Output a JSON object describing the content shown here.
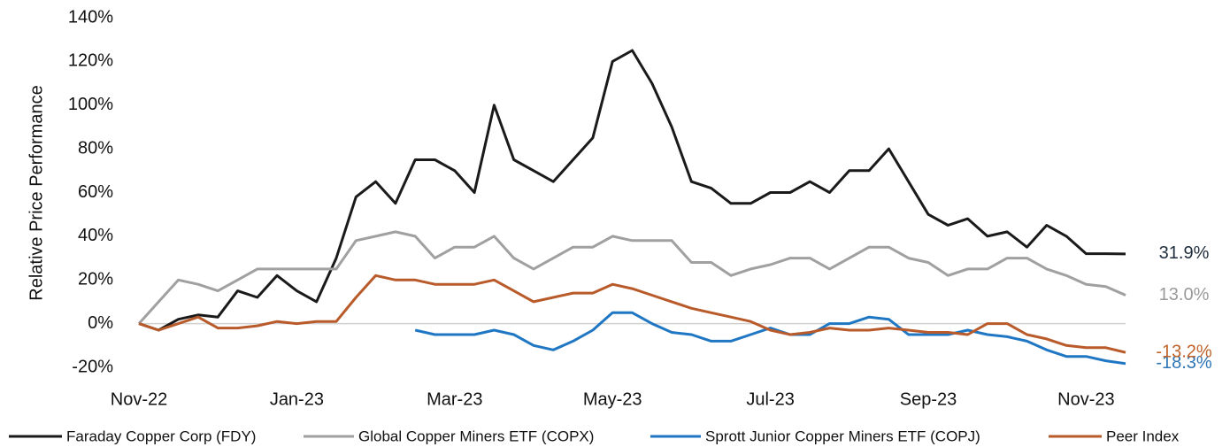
{
  "chart_data": {
    "type": "line",
    "y_label": "Relative Price Performance",
    "categories": [
      "Nov-22",
      null,
      null,
      null,
      null,
      null,
      null,
      null,
      "Jan-23",
      null,
      null,
      null,
      null,
      null,
      null,
      null,
      "Mar-23",
      null,
      null,
      null,
      null,
      null,
      null,
      null,
      "May-23",
      null,
      null,
      null,
      null,
      null,
      null,
      null,
      "Jul-23",
      null,
      null,
      null,
      null,
      null,
      null,
      null,
      "Sep-23",
      null,
      null,
      null,
      null,
      null,
      null,
      null,
      "Nov-23",
      null,
      null
    ],
    "ylim": [
      -20,
      140
    ],
    "yticks": [
      {
        "value": -20,
        "label": "-20%"
      },
      {
        "value": 0,
        "label": "0%"
      },
      {
        "value": 20,
        "label": "20%"
      },
      {
        "value": 40,
        "label": "40%"
      },
      {
        "value": 60,
        "label": "60%"
      },
      {
        "value": 80,
        "label": "80%"
      },
      {
        "value": 100,
        "label": "100%"
      },
      {
        "value": 120,
        "label": "120%"
      },
      {
        "value": 140,
        "label": "140%"
      }
    ],
    "grid": false,
    "legend": "bottom",
    "series": [
      {
        "name": "Faraday Copper Corp (FDY)",
        "color": "#1a1a1a",
        "label_color": "#1f2d3d",
        "end_label": "31.9%",
        "values": [
          0,
          -3,
          2,
          4,
          3,
          15,
          12,
          22,
          15,
          10,
          30,
          58,
          65,
          55,
          75,
          75,
          70,
          60,
          100,
          75,
          70,
          65,
          75,
          85,
          120,
          125,
          110,
          90,
          65,
          62,
          55,
          55,
          60,
          60,
          65,
          60,
          70,
          70,
          80,
          65,
          50,
          45,
          48,
          40,
          42,
          35,
          45,
          40,
          32,
          32,
          31.9
        ]
      },
      {
        "name": "Global Copper Miners ETF (COPX)",
        "color": "#a0a0a0",
        "label_color": "#9a9a9a",
        "end_label": "13.0%",
        "values": [
          0,
          10,
          20,
          18,
          15,
          20,
          25,
          25,
          25,
          25,
          25,
          38,
          40,
          42,
          40,
          30,
          35,
          35,
          40,
          30,
          25,
          30,
          35,
          35,
          40,
          38,
          38,
          38,
          28,
          28,
          22,
          25,
          27,
          30,
          30,
          25,
          30,
          35,
          35,
          30,
          28,
          22,
          25,
          25,
          30,
          30,
          25,
          22,
          18,
          17,
          13.0
        ]
      },
      {
        "name": "Sprott Junior Copper Miners ETF (COPJ)",
        "color": "#1f77c4",
        "label_color": "#2e75b6",
        "end_label": "-18.3%",
        "values": [
          null,
          null,
          null,
          null,
          null,
          null,
          null,
          null,
          null,
          null,
          null,
          null,
          null,
          null,
          -3,
          -5,
          -5,
          -5,
          -3,
          -5,
          -10,
          -12,
          -8,
          -3,
          5,
          5,
          0,
          -4,
          -5,
          -8,
          -8,
          -5,
          -2,
          -5,
          -5,
          0,
          0,
          3,
          2,
          -5,
          -5,
          -5,
          -3,
          -5,
          -6,
          -8,
          -12,
          -15,
          -15,
          -17,
          -18.3
        ]
      },
      {
        "name": "Peer Index",
        "color": "#b85a2a",
        "label_color": "#c0622a",
        "end_label": "-13.2%",
        "values": [
          0,
          -3,
          0,
          3,
          -2,
          -2,
          -1,
          1,
          0,
          1,
          1,
          12,
          22,
          20,
          20,
          18,
          18,
          18,
          20,
          15,
          10,
          12,
          14,
          14,
          18,
          16,
          13,
          10,
          7,
          5,
          3,
          1,
          -3,
          -5,
          -4,
          -2,
          -3,
          -3,
          -2,
          -3,
          -4,
          -4,
          -5,
          0,
          0,
          -5,
          -7,
          -10,
          -11,
          -11,
          -13.2
        ]
      }
    ]
  }
}
